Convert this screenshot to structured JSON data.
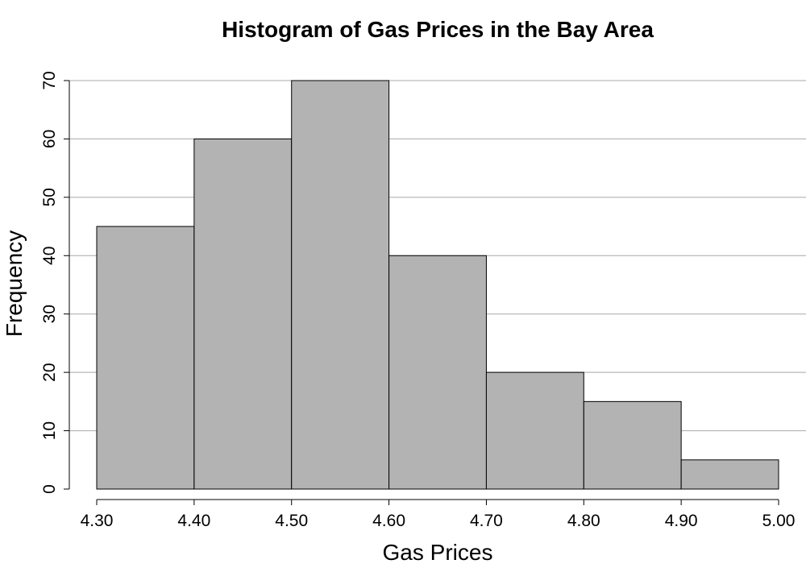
{
  "chart_data": {
    "type": "bar",
    "title": "Histogram of Gas Prices in the Bay Area",
    "xlabel": "Gas Prices",
    "ylabel": "Frequency",
    "bins": [
      {
        "x0": 4.3,
        "x1": 4.4,
        "value": 45
      },
      {
        "x0": 4.4,
        "x1": 4.5,
        "value": 60
      },
      {
        "x0": 4.5,
        "x1": 4.6,
        "value": 70
      },
      {
        "x0": 4.6,
        "x1": 4.7,
        "value": 40
      },
      {
        "x0": 4.7,
        "x1": 4.8,
        "value": 20
      },
      {
        "x0": 4.8,
        "x1": 4.9,
        "value": 15
      },
      {
        "x0": 4.9,
        "x1": 5.0,
        "value": 5
      }
    ],
    "xlim": [
      4.3,
      5.0
    ],
    "ylim": [
      0,
      70
    ],
    "x_ticks": [
      "4.30",
      "4.40",
      "4.50",
      "4.60",
      "4.70",
      "4.80",
      "4.90",
      "5.00"
    ],
    "y_ticks": [
      "0",
      "10",
      "20",
      "30",
      "40",
      "50",
      "60",
      "70"
    ],
    "grid": "horizontal",
    "bar_color": "#b3b3b3",
    "bar_edge_color": "#000000",
    "grid_color": "#a8a8a8"
  }
}
